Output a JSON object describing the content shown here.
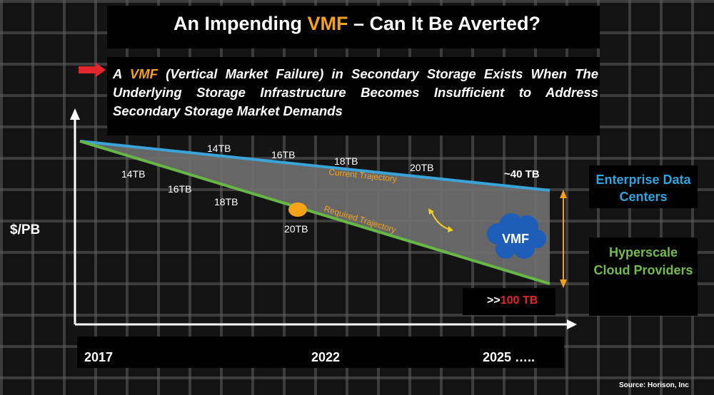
{
  "title": {
    "prefix": "An Impending ",
    "highlight": "VMF",
    "suffix": " – Can It Be Averted?"
  },
  "description": {
    "prefix": "A ",
    "highlight": "VMF",
    "suffix": " (Vertical Market Failure) in Secondary Storage Exists When The Underlying Storage Infrastructure Becomes Insufficient to Address Secondary Storage Market Demands"
  },
  "y_axis_label": "$/PB",
  "x_axis_ticks": [
    "2017",
    "2022",
    "2025 ….."
  ],
  "upper_line": {
    "name": "Current Trajectory",
    "points": [
      "14TB",
      "16TB",
      "18TB",
      "20TB"
    ],
    "end_label": "~40 TB",
    "color": "#3aa4d8"
  },
  "lower_line": {
    "name": "Required Trajectory",
    "points": [
      "14TB",
      "16TB",
      "18TB",
      "20TB"
    ],
    "end_label_prefix": ">>",
    "end_label_value": "100 TB",
    "color": "#66b745"
  },
  "gap_label": "VMF",
  "enterprise_label": "Enterprise Data Centers",
  "hyperscale_label": "Hyperscale Cloud Providers",
  "source": "Source: Horison, Inc",
  "colors": {
    "accent": "#f5a21b",
    "red": "#e3262b",
    "enterprise": "#2ea5dd",
    "hyperscale": "#73bc4b"
  },
  "icons": [
    "red-arrow-icon",
    "yellow-dot-icon",
    "curved-arrow-icon",
    "vmf-cloud-icon",
    "double-arrow-icon"
  ]
}
